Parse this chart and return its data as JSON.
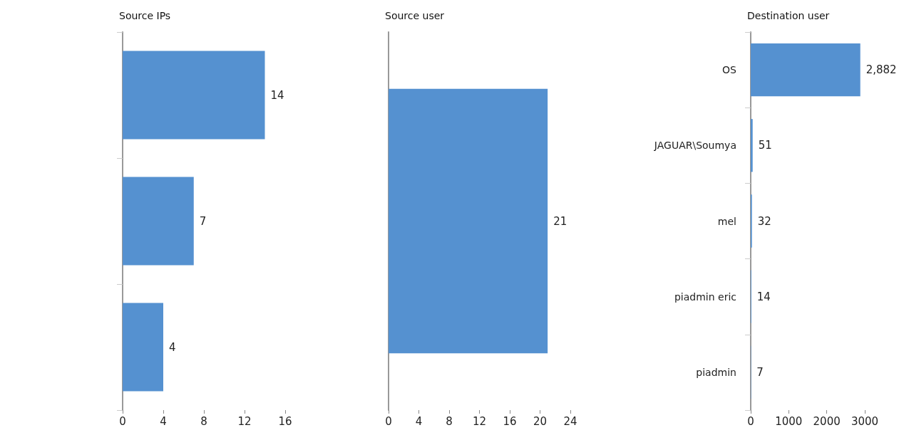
{
  "chart_data": [
    {
      "type": "bar",
      "orientation": "horizontal",
      "title": "Source IPs",
      "categories": [
        null,
        null,
        null
      ],
      "values": [
        14,
        7,
        4
      ],
      "color": "#5591d0",
      "xlim": [
        0,
        16
      ],
      "xticks": [
        0,
        4,
        8,
        12,
        16
      ],
      "data_labels": true,
      "grid": false
    },
    {
      "type": "bar",
      "orientation": "horizontal",
      "title": "Source user",
      "categories": [
        null
      ],
      "values": [
        21
      ],
      "color": "#5591d0",
      "xlim": [
        0,
        24
      ],
      "xticks": [
        0,
        4,
        8,
        12,
        16,
        20,
        24
      ],
      "data_labels": true,
      "grid": false
    },
    {
      "type": "bar",
      "orientation": "horizontal",
      "title": "Destination user",
      "categories": [
        "OS",
        "JAGUAR\\Soumya",
        "mel",
        "piadmin eric",
        "piadmin"
      ],
      "values": [
        2882,
        51,
        32,
        14,
        7
      ],
      "value_labels": [
        "2,882",
        "51",
        "32",
        "14",
        "7"
      ],
      "color": "#5591d0",
      "xlim": [
        0,
        3000
      ],
      "xticks": [
        0,
        1000,
        2000,
        3000
      ],
      "grid": false
    }
  ]
}
